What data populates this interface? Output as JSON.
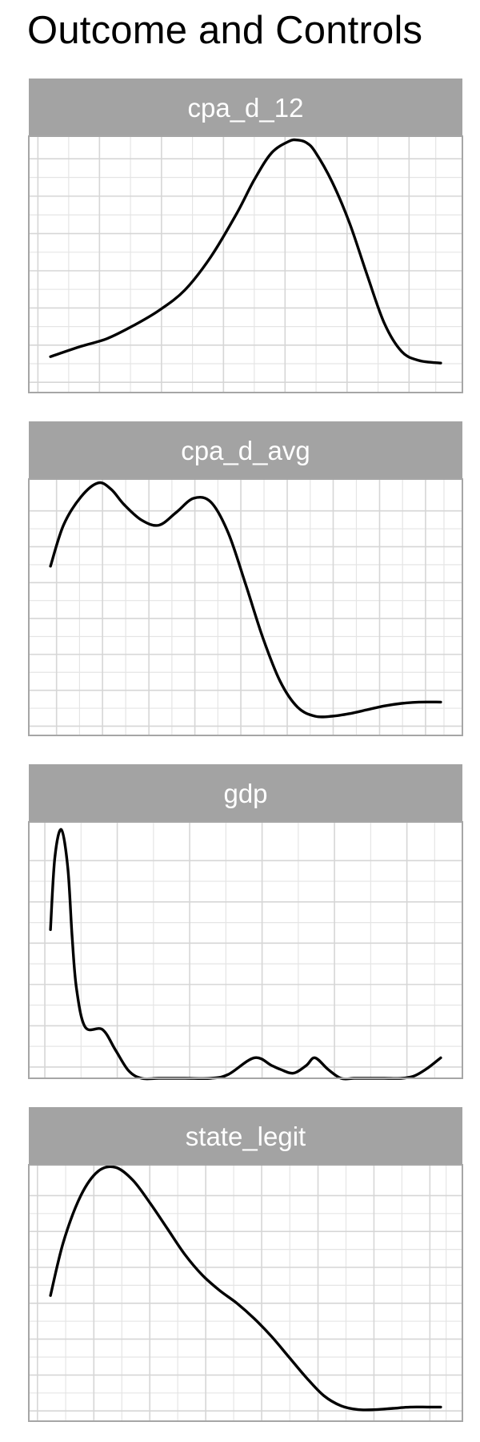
{
  "chart_data": {
    "type": "area",
    "title": "Outcome and Controls",
    "style": {
      "strip_fill": "#a3a3a3",
      "strip_text_color": "#ffffff",
      "panel_border": "#a6a6a6",
      "grid_major": "#d6d6d6",
      "grid_minor": "#e5e5e5",
      "line_color": "#000000",
      "grid": true
    },
    "panels": [
      {
        "name": "cpa_d_12",
        "xlim": [
          0,
          1
        ],
        "ylim": [
          0,
          1
        ],
        "x_breaks": [
          0.021,
          0.163,
          0.306,
          0.449,
          0.591,
          0.734,
          0.877,
          1.0
        ],
        "y_breaks": [
          0.04,
          0.185,
          0.33,
          0.475,
          0.62,
          0.766,
          0.912
        ],
        "x": [
          0.05,
          0.12,
          0.18,
          0.24,
          0.3,
          0.36,
          0.42,
          0.48,
          0.52,
          0.56,
          0.6,
          0.62,
          0.64,
          0.66,
          0.7,
          0.74,
          0.78,
          0.82,
          0.86,
          0.9,
          0.95
        ],
        "y": [
          0.14,
          0.18,
          0.21,
          0.26,
          0.32,
          0.4,
          0.53,
          0.7,
          0.83,
          0.935,
          0.98,
          0.985,
          0.975,
          0.94,
          0.82,
          0.66,
          0.46,
          0.27,
          0.16,
          0.125,
          0.115
        ]
      },
      {
        "name": "cpa_d_avg",
        "xlim": [
          0,
          1
        ],
        "ylim": [
          0,
          1
        ],
        "x_breaks": [
          0.064,
          0.17,
          0.277,
          0.383,
          0.489,
          0.596,
          0.702,
          0.809,
          0.915,
          1.0
        ],
        "y_breaks": [
          0.036,
          0.176,
          0.316,
          0.456,
          0.596,
          0.736,
          0.876
        ],
        "x": [
          0.05,
          0.08,
          0.12,
          0.16,
          0.19,
          0.22,
          0.26,
          0.3,
          0.34,
          0.38,
          0.42,
          0.46,
          0.5,
          0.54,
          0.58,
          0.62,
          0.66,
          0.7,
          0.74,
          0.78,
          0.82,
          0.86,
          0.9,
          0.95
        ],
        "y": [
          0.66,
          0.82,
          0.93,
          0.985,
          0.96,
          0.9,
          0.84,
          0.82,
          0.87,
          0.925,
          0.91,
          0.79,
          0.59,
          0.38,
          0.21,
          0.11,
          0.075,
          0.075,
          0.085,
          0.1,
          0.115,
          0.125,
          0.13,
          0.13
        ]
      },
      {
        "name": "gdp",
        "xlim": [
          0,
          1
        ],
        "ylim": [
          0,
          1
        ],
        "x_breaks": [
          0.037,
          0.204,
          0.371,
          0.538,
          0.705,
          0.872,
          1.0
        ],
        "y_breaks": [
          0.044,
          0.205,
          0.366,
          0.527,
          0.688,
          0.849
        ],
        "x": [
          0.05,
          0.06,
          0.075,
          0.09,
          0.1,
          0.11,
          0.13,
          0.17,
          0.2,
          0.23,
          0.26,
          0.3,
          0.36,
          0.42,
          0.46,
          0.52,
          0.56,
          0.58,
          0.61,
          0.64,
          0.66,
          0.69,
          0.72,
          0.75,
          0.78,
          0.82,
          0.86,
          0.89,
          0.92,
          0.95
        ],
        "y": [
          0.58,
          0.86,
          0.97,
          0.82,
          0.55,
          0.35,
          0.2,
          0.19,
          0.11,
          0.03,
          0.0,
          0.0,
          0.0,
          0.0,
          0.015,
          0.08,
          0.05,
          0.035,
          0.02,
          0.05,
          0.08,
          0.035,
          0.0,
          0.0,
          0.0,
          0.0,
          0.0,
          0.01,
          0.04,
          0.08
        ]
      },
      {
        "name": "state_legit",
        "xlim": [
          0,
          1
        ],
        "ylim": [
          0,
          1
        ],
        "x_breaks": [
          0.02,
          0.15,
          0.279,
          0.408,
          0.537,
          0.667,
          0.796,
          0.925,
          1.0
        ],
        "y_breaks": [
          0.04,
          0.18,
          0.32,
          0.46,
          0.6,
          0.74,
          0.88
        ],
        "x": [
          0.05,
          0.08,
          0.12,
          0.16,
          0.2,
          0.24,
          0.28,
          0.32,
          0.36,
          0.4,
          0.44,
          0.48,
          0.52,
          0.56,
          0.6,
          0.64,
          0.68,
          0.72,
          0.76,
          0.8,
          0.84,
          0.88,
          0.92,
          0.95
        ],
        "y": [
          0.49,
          0.7,
          0.88,
          0.975,
          0.99,
          0.94,
          0.85,
          0.75,
          0.65,
          0.57,
          0.51,
          0.46,
          0.4,
          0.33,
          0.25,
          0.17,
          0.1,
          0.06,
          0.045,
          0.045,
          0.05,
          0.055,
          0.055,
          0.055
        ]
      }
    ]
  }
}
